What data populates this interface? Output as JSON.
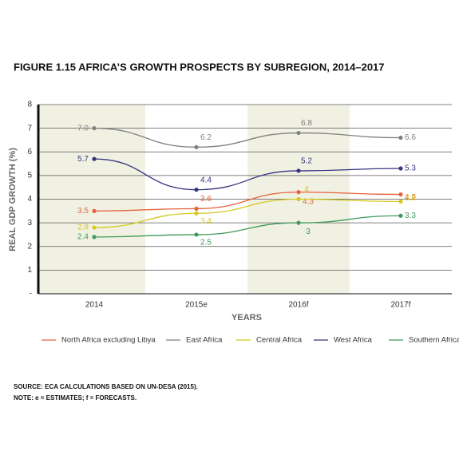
{
  "chart_data": {
    "type": "line",
    "title": "FIGURE 1.15    AFRICA’S GROWTH PROSPECTS BY SUBREGION, 2014–2017",
    "x_label": "YEARS",
    "y_label": "REAL GDP GROWTH (%)",
    "categories": [
      "2014",
      "2015e",
      "2016f",
      "2017f"
    ],
    "ylim": [
      0,
      8
    ],
    "yticks": [
      {
        "value": 0,
        "label": "-"
      },
      1,
      2,
      3,
      4,
      5,
      6,
      7,
      8
    ],
    "grid": true,
    "series": [
      {
        "name": "North Africa excluding Libya",
        "color": "#e8603c",
        "values": [
          3.5,
          3.6,
          4.3,
          4.2
        ]
      },
      {
        "name": "East Africa",
        "color": "#7f7f7f",
        "values": [
          7.0,
          6.2,
          6.8,
          6.6
        ],
        "value_labels": [
          "7.0",
          "6.2",
          "6.8",
          "6.6"
        ]
      },
      {
        "name": "Central Africa",
        "color": "#d4c81e",
        "values": [
          2.8,
          3.4,
          4.0,
          3.9
        ]
      },
      {
        "name": "West Africa",
        "color": "#34347f",
        "values": [
          5.7,
          4.4,
          5.2,
          5.3
        ]
      },
      {
        "name": "Southern Africa",
        "color": "#3f9a5a",
        "values": [
          2.4,
          2.5,
          3.0,
          3.3
        ]
      }
    ],
    "source": "SOURCE: ECA CALCULATIONS BASED ON UN-DESA (2015).",
    "note": "NOTE: e = ESTIMATES; f = FORECASTS."
  }
}
